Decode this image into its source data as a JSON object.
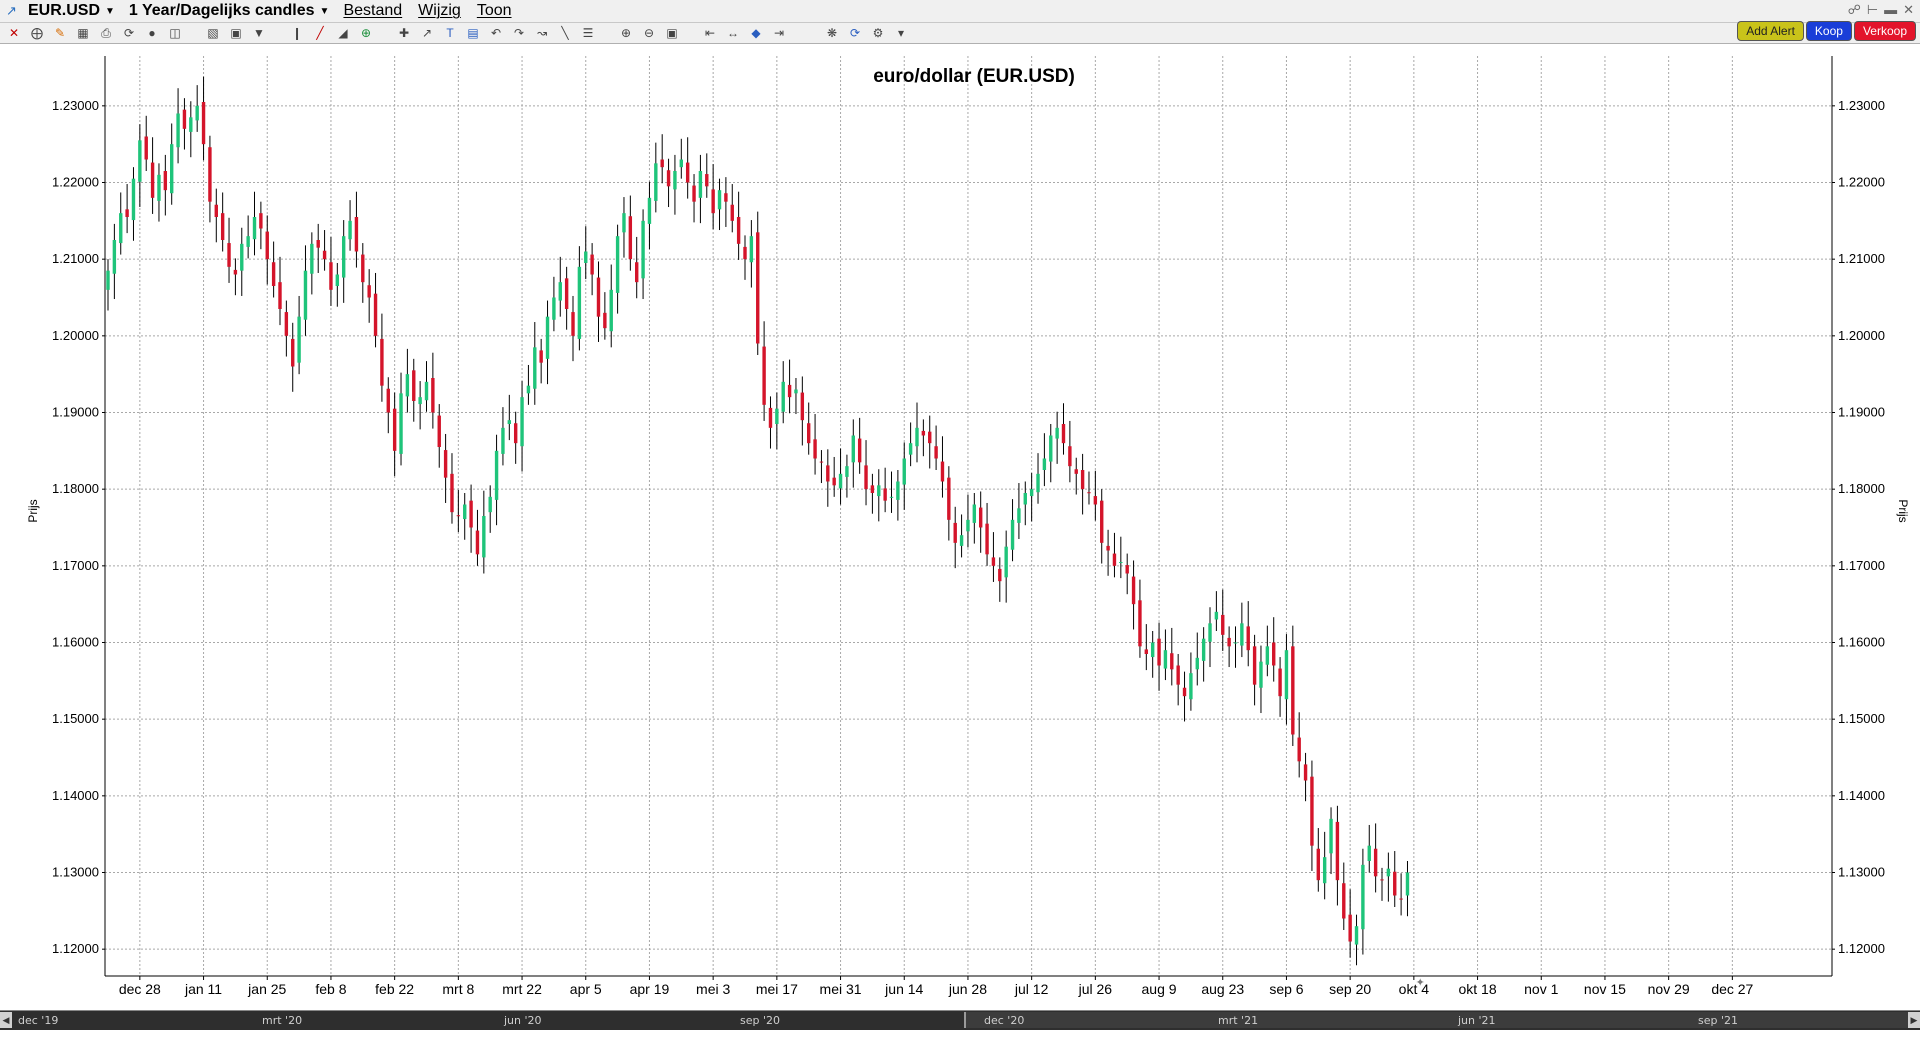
{
  "app": {
    "symbol": "EUR.USD",
    "timeframe": "1 Year/Dagelijks candles",
    "menus": [
      "Bestand",
      "Wijzig",
      "Toon"
    ]
  },
  "actions": {
    "alert": "Add Alert",
    "buy": "Koop",
    "sell": "Verkoop"
  },
  "colors": {
    "up": "#1fc47a",
    "down": "#d4142a",
    "grid": "#a8a8a8",
    "wick": "#000000"
  },
  "navigator": {
    "labels": [
      "dec '19",
      "mrt '20",
      "jun '20",
      "sep '20",
      "dec '20",
      "mrt '21",
      "jun '21",
      "sep '21"
    ]
  },
  "chart_data": {
    "type": "candlestick",
    "title": "euro/dollar (EUR.USD)",
    "ylabel": "Prijs",
    "ylim": [
      1.1165,
      1.2365
    ],
    "yticks": [
      "1.12000",
      "1.13000",
      "1.14000",
      "1.15000",
      "1.16000",
      "1.17000",
      "1.18000",
      "1.19000",
      "1.20000",
      "1.21000",
      "1.22000",
      "1.23000"
    ],
    "xticks": [
      "dec 28",
      "jan 11",
      "jan 25",
      "feb 8",
      "feb 22",
      "mrt 8",
      "mrt 22",
      "apr 5",
      "apr 19",
      "mei 3",
      "mei 17",
      "mei 31",
      "jun 14",
      "jun 28",
      "jul 12",
      "jul 26",
      "aug 9",
      "aug 23",
      "sep 6",
      "sep 20",
      "okt 4",
      "okt 18",
      "nov 1",
      "nov 15",
      "nov 29",
      "dec 27"
    ],
    "grid": true,
    "close": [
      1.2085,
      1.2125,
      1.216,
      1.2155,
      1.2205,
      1.2255,
      1.223,
      1.218,
      1.221,
      1.219,
      1.225,
      1.229,
      1.227,
      1.2285,
      1.23,
      1.225,
      1.2175,
      1.2155,
      1.2125,
      1.209,
      1.208,
      1.212,
      1.213,
      1.2155,
      1.214,
      1.21,
      1.2065,
      1.2035,
      1.2,
      1.196,
      1.2025,
      1.2085,
      1.212,
      1.2115,
      1.21,
      1.206,
      1.208,
      1.213,
      1.215,
      1.211,
      1.207,
      1.205,
      1.2,
      1.1935,
      1.19,
      1.185,
      1.1925,
      1.195,
      1.1915,
      1.192,
      1.194,
      1.19,
      1.1855,
      1.1815,
      1.177,
      1.1765,
      1.178,
      1.175,
      1.1715,
      1.1765,
      1.179,
      1.185,
      1.188,
      1.189,
      1.186,
      1.192,
      1.1935,
      1.1985,
      1.1965,
      1.2025,
      1.205,
      1.207,
      1.2035,
      1.2,
      1.209,
      1.211,
      1.208,
      1.2025,
      1.201,
      1.206,
      1.213,
      1.216,
      1.21,
      1.207,
      1.215,
      1.218,
      1.2225,
      1.222,
      1.2195,
      1.2215,
      1.223,
      1.22,
      1.2175,
      1.2215,
      1.2195,
      1.216,
      1.219,
      1.2175,
      1.215,
      1.212,
      1.21,
      1.213,
      1.199,
      1.191,
      1.188,
      1.1905,
      1.194,
      1.192,
      1.193,
      1.189,
      1.186,
      1.184,
      1.1835,
      1.181,
      1.1805,
      1.182,
      1.183,
      1.187,
      1.1835,
      1.18,
      1.1795,
      1.1805,
      1.1785,
      1.179,
      1.181,
      1.184,
      1.186,
      1.188,
      1.187,
      1.186,
      1.184,
      1.181,
      1.176,
      1.173,
      1.174,
      1.176,
      1.178,
      1.175,
      1.1715,
      1.17,
      1.168,
      1.1725,
      1.176,
      1.1775,
      1.1795,
      1.18,
      1.182,
      1.184,
      1.187,
      1.188,
      1.186,
      1.183,
      1.182,
      1.18,
      1.1795,
      1.178,
      1.173,
      1.172,
      1.17,
      1.1705,
      1.169,
      1.165,
      1.1595,
      1.1585,
      1.16,
      1.157,
      1.159,
      1.1565,
      1.1545,
      1.153,
      1.156,
      1.158,
      1.1605,
      1.1625,
      1.164,
      1.161,
      1.1595,
      1.16,
      1.1625,
      1.159,
      1.1545,
      1.1575,
      1.1595,
      1.157,
      1.153,
      1.159,
      1.148,
      1.1445,
      1.142,
      1.1335,
      1.129,
      1.132,
      1.137,
      1.129,
      1.124,
      1.121,
      1.123,
      1.131,
      1.1335,
      1.1295,
      1.129,
      1.1305,
      1.127,
      1.1265,
      1.13
    ],
    "x_start": "2020-12-21",
    "x_step": "1 trading day"
  }
}
